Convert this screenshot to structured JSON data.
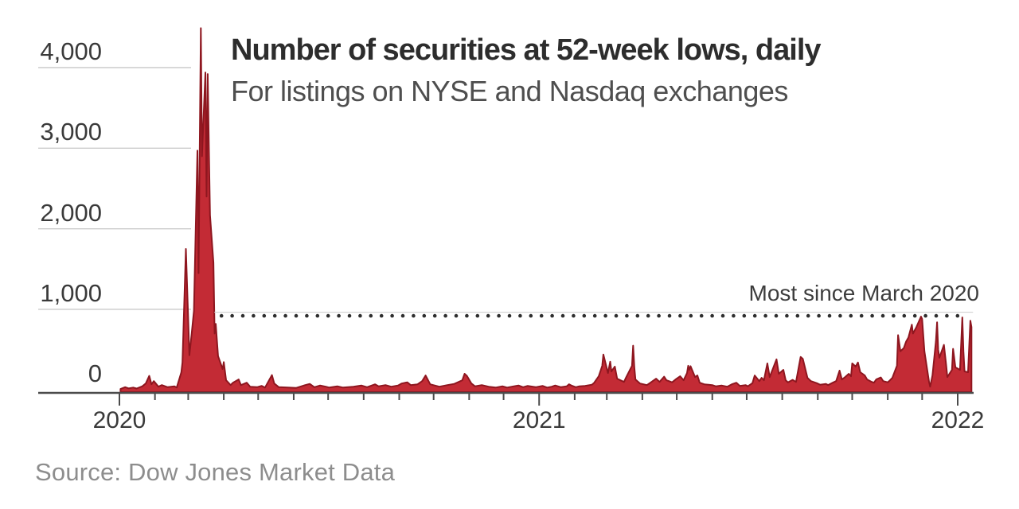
{
  "colors": {
    "area_fill": "#c32b35",
    "area_stroke": "#8e161f",
    "axis": "#4b4b4b",
    "grid": "#cbcbcb",
    "ref_line_faint": "#d2d2d2",
    "ref_dots": "#2e2e2e",
    "title_text": "#2d2d2d",
    "subtitle_text": "#4e4e4e",
    "source_text": "#8d8d8d"
  },
  "chart_data": {
    "type": "area",
    "title": "Number of securities at 52-week lows, daily",
    "subtitle": "For listings on NYSE and Nasdaq exchanges",
    "source": "Source: Dow Jones Market Data",
    "xlabel": "",
    "ylabel": "",
    "ylim": [
      0,
      4500
    ],
    "grid": "left-stub-gridlines",
    "legend": "none",
    "y_ticks": [
      {
        "value": 4000,
        "label": "4,000"
      },
      {
        "value": 3000,
        "label": "3,000"
      },
      {
        "value": 2000,
        "label": "2,000"
      },
      {
        "value": 1000,
        "label": "1,000"
      },
      {
        "value": 0,
        "label": "0"
      }
    ],
    "x_ticks": [
      {
        "date": "2020-01-01",
        "label": "2020"
      },
      {
        "date": "2021-01-01",
        "label": "2021"
      },
      {
        "date": "2022-01-01",
        "label": "2022"
      }
    ],
    "reference_line": {
      "label": "Most since March 2020",
      "value": 920,
      "style": "dotted",
      "start": "2020-03-30",
      "end": "2022-01-08"
    },
    "series": [
      {
        "name": "Securities at 52-week lows",
        "points": [
          [
            "2020-01-02",
            12
          ],
          [
            "2020-01-06",
            35
          ],
          [
            "2020-01-09",
            20
          ],
          [
            "2020-01-13",
            30
          ],
          [
            "2020-01-16",
            18
          ],
          [
            "2020-01-21",
            45
          ],
          [
            "2020-01-24",
            80
          ],
          [
            "2020-01-27",
            175
          ],
          [
            "2020-01-29",
            70
          ],
          [
            "2020-01-31",
            110
          ],
          [
            "2020-02-04",
            40
          ],
          [
            "2020-02-07",
            60
          ],
          [
            "2020-02-12",
            35
          ],
          [
            "2020-02-18",
            45
          ],
          [
            "2020-02-20",
            30
          ],
          [
            "2020-02-24",
            220
          ],
          [
            "2020-02-25",
            340
          ],
          [
            "2020-02-28",
            1750
          ],
          [
            "2020-03-02",
            430
          ],
          [
            "2020-03-04",
            700
          ],
          [
            "2020-03-06",
            980
          ],
          [
            "2020-03-09",
            2970
          ],
          [
            "2020-03-10",
            1450
          ],
          [
            "2020-03-12",
            4490
          ],
          [
            "2020-03-13",
            2900
          ],
          [
            "2020-03-16",
            3940
          ],
          [
            "2020-03-17",
            2400
          ],
          [
            "2020-03-18",
            3920
          ],
          [
            "2020-03-19",
            3000
          ],
          [
            "2020-03-20",
            2170
          ],
          [
            "2020-03-23",
            1580
          ],
          [
            "2020-03-24",
            700
          ],
          [
            "2020-03-25",
            820
          ],
          [
            "2020-03-27",
            420
          ],
          [
            "2020-03-31",
            260
          ],
          [
            "2020-04-01",
            345
          ],
          [
            "2020-04-03",
            120
          ],
          [
            "2020-04-07",
            60
          ],
          [
            "2020-04-09",
            90
          ],
          [
            "2020-04-14",
            130
          ],
          [
            "2020-04-16",
            60
          ],
          [
            "2020-04-21",
            90
          ],
          [
            "2020-04-24",
            40
          ],
          [
            "2020-04-30",
            35
          ],
          [
            "2020-05-04",
            50
          ],
          [
            "2020-05-07",
            30
          ],
          [
            "2020-05-13",
            185
          ],
          [
            "2020-05-15",
            80
          ],
          [
            "2020-05-19",
            35
          ],
          [
            "2020-05-27",
            30
          ],
          [
            "2020-06-03",
            25
          ],
          [
            "2020-06-11",
            60
          ],
          [
            "2020-06-15",
            75
          ],
          [
            "2020-06-19",
            35
          ],
          [
            "2020-06-24",
            55
          ],
          [
            "2020-06-29",
            40
          ],
          [
            "2020-07-02",
            30
          ],
          [
            "2020-07-09",
            45
          ],
          [
            "2020-07-14",
            30
          ],
          [
            "2020-07-23",
            40
          ],
          [
            "2020-07-30",
            55
          ],
          [
            "2020-08-04",
            35
          ],
          [
            "2020-08-11",
            70
          ],
          [
            "2020-08-14",
            45
          ],
          [
            "2020-08-20",
            60
          ],
          [
            "2020-08-25",
            40
          ],
          [
            "2020-08-31",
            55
          ],
          [
            "2020-09-03",
            80
          ],
          [
            "2020-09-08",
            95
          ],
          [
            "2020-09-11",
            60
          ],
          [
            "2020-09-17",
            70
          ],
          [
            "2020-09-21",
            110
          ],
          [
            "2020-09-24",
            180
          ],
          [
            "2020-09-28",
            70
          ],
          [
            "2020-10-02",
            55
          ],
          [
            "2020-10-06",
            40
          ],
          [
            "2020-10-13",
            60
          ],
          [
            "2020-10-19",
            75
          ],
          [
            "2020-10-26",
            120
          ],
          [
            "2020-10-28",
            200
          ],
          [
            "2020-10-30",
            175
          ],
          [
            "2020-11-03",
            80
          ],
          [
            "2020-11-06",
            45
          ],
          [
            "2020-11-12",
            60
          ],
          [
            "2020-11-18",
            40
          ],
          [
            "2020-11-24",
            30
          ],
          [
            "2020-11-30",
            45
          ],
          [
            "2020-12-04",
            30
          ],
          [
            "2020-12-10",
            45
          ],
          [
            "2020-12-14",
            55
          ],
          [
            "2020-12-18",
            35
          ],
          [
            "2020-12-22",
            50
          ],
          [
            "2020-12-29",
            35
          ],
          [
            "2021-01-04",
            50
          ],
          [
            "2021-01-08",
            30
          ],
          [
            "2021-01-12",
            40
          ],
          [
            "2021-01-15",
            55
          ],
          [
            "2021-01-20",
            35
          ],
          [
            "2021-01-25",
            45
          ],
          [
            "2021-01-27",
            70
          ],
          [
            "2021-01-29",
            55
          ],
          [
            "2021-02-02",
            35
          ],
          [
            "2021-02-05",
            45
          ],
          [
            "2021-02-10",
            50
          ],
          [
            "2021-02-16",
            65
          ],
          [
            "2021-02-18",
            90
          ],
          [
            "2021-02-22",
            170
          ],
          [
            "2021-02-25",
            300
          ],
          [
            "2021-02-26",
            440
          ],
          [
            "2021-03-02",
            210
          ],
          [
            "2021-03-04",
            350
          ],
          [
            "2021-03-05",
            230
          ],
          [
            "2021-03-08",
            290
          ],
          [
            "2021-03-10",
            140
          ],
          [
            "2021-03-16",
            100
          ],
          [
            "2021-03-18",
            160
          ],
          [
            "2021-03-23",
            300
          ],
          [
            "2021-03-24",
            550
          ],
          [
            "2021-03-25",
            280
          ],
          [
            "2021-03-26",
            130
          ],
          [
            "2021-03-30",
            80
          ],
          [
            "2021-04-05",
            60
          ],
          [
            "2021-04-08",
            90
          ],
          [
            "2021-04-13",
            140
          ],
          [
            "2021-04-16",
            100
          ],
          [
            "2021-04-20",
            165
          ],
          [
            "2021-04-22",
            120
          ],
          [
            "2021-04-27",
            95
          ],
          [
            "2021-04-30",
            130
          ],
          [
            "2021-05-04",
            170
          ],
          [
            "2021-05-07",
            120
          ],
          [
            "2021-05-10",
            210
          ],
          [
            "2021-05-11",
            300
          ],
          [
            "2021-05-12",
            250
          ],
          [
            "2021-05-13",
            295
          ],
          [
            "2021-05-17",
            160
          ],
          [
            "2021-05-19",
            180
          ],
          [
            "2021-05-21",
            90
          ],
          [
            "2021-05-25",
            70
          ],
          [
            "2021-06-01",
            60
          ],
          [
            "2021-06-04",
            45
          ],
          [
            "2021-06-09",
            55
          ],
          [
            "2021-06-14",
            40
          ],
          [
            "2021-06-18",
            70
          ],
          [
            "2021-06-22",
            90
          ],
          [
            "2021-06-25",
            50
          ],
          [
            "2021-06-30",
            60
          ],
          [
            "2021-07-02",
            45
          ],
          [
            "2021-07-06",
            85
          ],
          [
            "2021-07-08",
            180
          ],
          [
            "2021-07-12",
            110
          ],
          [
            "2021-07-14",
            150
          ],
          [
            "2021-07-16",
            120
          ],
          [
            "2021-07-19",
            330
          ],
          [
            "2021-07-21",
            160
          ],
          [
            "2021-07-27",
            380
          ],
          [
            "2021-07-29",
            200
          ],
          [
            "2021-08-02",
            250
          ],
          [
            "2021-08-04",
            120
          ],
          [
            "2021-08-06",
            95
          ],
          [
            "2021-08-10",
            125
          ],
          [
            "2021-08-13",
            100
          ],
          [
            "2021-08-17",
            410
          ],
          [
            "2021-08-19",
            385
          ],
          [
            "2021-08-23",
            150
          ],
          [
            "2021-08-26",
            110
          ],
          [
            "2021-08-31",
            85
          ],
          [
            "2021-09-03",
            65
          ],
          [
            "2021-09-08",
            75
          ],
          [
            "2021-09-10",
            60
          ],
          [
            "2021-09-14",
            90
          ],
          [
            "2021-09-17",
            110
          ],
          [
            "2021-09-20",
            240
          ],
          [
            "2021-09-22",
            130
          ],
          [
            "2021-09-24",
            150
          ],
          [
            "2021-09-28",
            200
          ],
          [
            "2021-09-30",
            170
          ],
          [
            "2021-10-01",
            330
          ],
          [
            "2021-10-04",
            290
          ],
          [
            "2021-10-06",
            340
          ],
          [
            "2021-10-08",
            220
          ],
          [
            "2021-10-12",
            180
          ],
          [
            "2021-10-14",
            130
          ],
          [
            "2021-10-18",
            100
          ],
          [
            "2021-10-20",
            90
          ],
          [
            "2021-10-22",
            130
          ],
          [
            "2021-10-26",
            155
          ],
          [
            "2021-10-28",
            110
          ],
          [
            "2021-11-01",
            95
          ],
          [
            "2021-11-03",
            120
          ],
          [
            "2021-11-05",
            150
          ],
          [
            "2021-11-09",
            300
          ],
          [
            "2021-11-10",
            680
          ],
          [
            "2021-11-12",
            480
          ],
          [
            "2021-11-15",
            520
          ],
          [
            "2021-11-17",
            600
          ],
          [
            "2021-11-19",
            650
          ],
          [
            "2021-11-22",
            810
          ],
          [
            "2021-11-23",
            700
          ],
          [
            "2021-11-26",
            780
          ],
          [
            "2021-11-30",
            910
          ],
          [
            "2021-12-01",
            880
          ],
          [
            "2021-12-03",
            480
          ],
          [
            "2021-12-07",
            100
          ],
          [
            "2021-12-08",
            40
          ],
          [
            "2021-12-10",
            180
          ],
          [
            "2021-12-13",
            600
          ],
          [
            "2021-12-14",
            840
          ],
          [
            "2021-12-15",
            500
          ],
          [
            "2021-12-16",
            400
          ],
          [
            "2021-12-20",
            560
          ],
          [
            "2021-12-22",
            300
          ],
          [
            "2021-12-23",
            160
          ],
          [
            "2021-12-27",
            250
          ],
          [
            "2021-12-28",
            510
          ],
          [
            "2021-12-30",
            280
          ],
          [
            "2022-01-03",
            250
          ],
          [
            "2022-01-04",
            560
          ],
          [
            "2022-01-05",
            900
          ],
          [
            "2022-01-06",
            480
          ],
          [
            "2022-01-07",
            230
          ],
          [
            "2022-01-10",
            220
          ],
          [
            "2022-01-12",
            860
          ],
          [
            "2022-01-13",
            780
          ]
        ]
      }
    ]
  }
}
